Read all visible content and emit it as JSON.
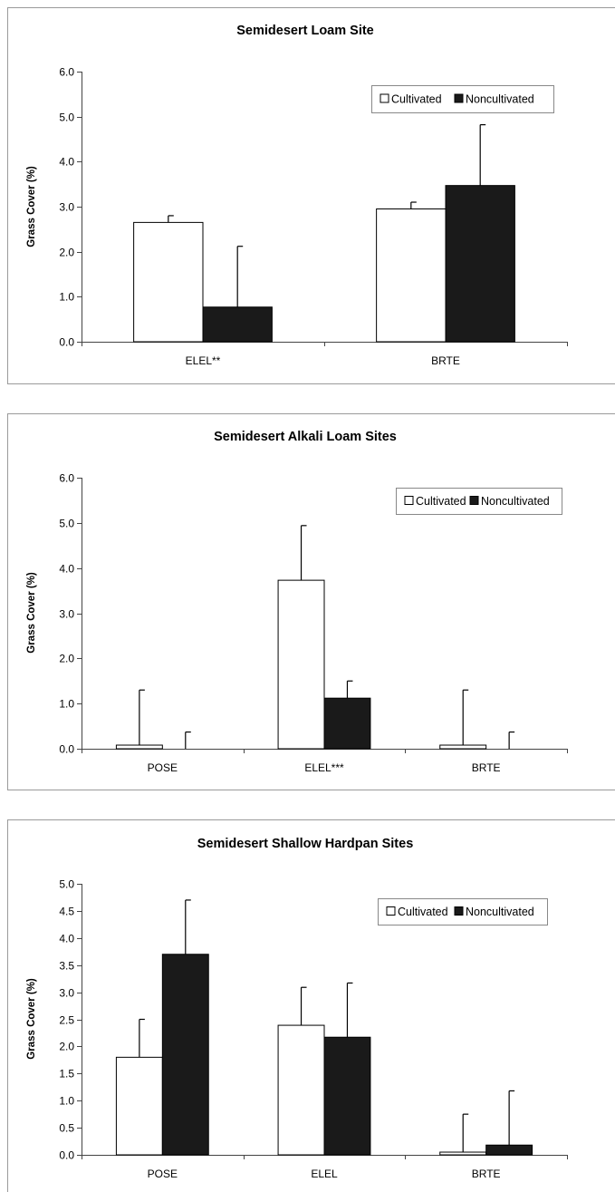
{
  "colors": {
    "cultivated": "#ffffff",
    "noncultivated": "#1a1a1a",
    "frame": "#9a9a9a",
    "axis": "#444444"
  },
  "chart_data": [
    {
      "type": "bar",
      "title": "Semidesert Loam Site",
      "ylabel": "Grass Cover (%)",
      "xlabel": "",
      "ylim": [
        0,
        6
      ],
      "yticks": [
        "0.0",
        "1.0",
        "2.0",
        "3.0",
        "4.0",
        "5.0",
        "6.0"
      ],
      "categories": [
        "ELEL**",
        "BRTE"
      ],
      "series": [
        {
          "name": "Cultivated",
          "values": [
            2.65,
            2.95
          ],
          "errors": [
            0.15,
            0.15
          ]
        },
        {
          "name": "Noncultivated",
          "values": [
            0.77,
            3.47
          ],
          "errors": [
            1.35,
            1.35
          ]
        }
      ],
      "legend": "top-right",
      "grid": false
    },
    {
      "type": "bar",
      "title": "Semidesert Alkali Loam Sites",
      "ylabel": "Grass Cover (%)",
      "xlabel": "",
      "ylim": [
        0,
        6
      ],
      "yticks": [
        "0.0",
        "1.0",
        "2.0",
        "3.0",
        "4.0",
        "5.0",
        "6.0"
      ],
      "categories": [
        "POSE",
        "ELEL***",
        "BRTE"
      ],
      "series": [
        {
          "name": "Cultivated",
          "values": [
            0.08,
            3.73,
            0.08
          ],
          "errors": [
            1.22,
            1.21,
            1.22
          ]
        },
        {
          "name": "Noncultivated",
          "values": [
            0.0,
            1.12,
            0.0
          ],
          "errors": [
            0.37,
            0.38,
            0.37
          ]
        }
      ],
      "legend": "top-right",
      "grid": false
    },
    {
      "type": "bar",
      "title": "Semidesert Shallow Hardpan Sites",
      "ylabel": "Grass Cover (%)",
      "xlabel": "",
      "ylim": [
        0,
        5
      ],
      "yticks": [
        "0.0",
        "0.5",
        "1.0",
        "1.5",
        "2.0",
        "2.5",
        "3.0",
        "3.5",
        "4.0",
        "4.5",
        "5.0"
      ],
      "categories": [
        "POSE",
        "ELEL",
        "BRTE"
      ],
      "series": [
        {
          "name": "Cultivated",
          "values": [
            1.8,
            2.39,
            0.05
          ],
          "errors": [
            0.7,
            0.7,
            0.7
          ]
        },
        {
          "name": "Noncultivated",
          "values": [
            3.7,
            2.17,
            0.18
          ],
          "errors": [
            1.0,
            1.0,
            1.0
          ]
        }
      ],
      "legend": "top-right",
      "grid": false
    }
  ]
}
